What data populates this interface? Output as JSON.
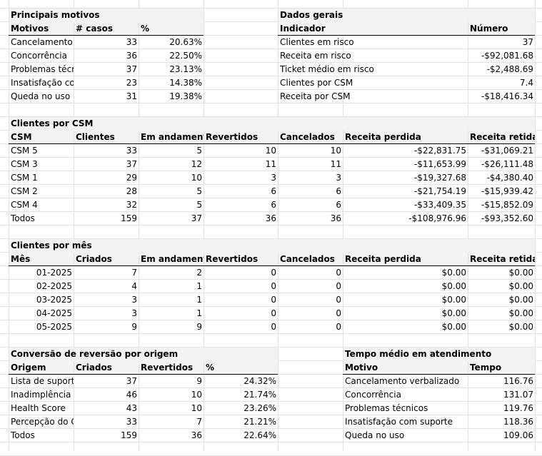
{
  "sections": [
    {
      "id": "principais-motivos",
      "title": "Principais motivos",
      "headers": [
        "Motivos",
        "# casos",
        "%"
      ],
      "rows": [
        [
          "Cancelamento",
          "33",
          "20.63%"
        ],
        [
          "Concorrência",
          "36",
          "22.50%"
        ],
        [
          "Problemas técr",
          "37",
          "23.13%"
        ],
        [
          "Insatisfação co",
          "23",
          "14.38%"
        ],
        [
          "Queda no uso",
          "31",
          "19.38%"
        ]
      ]
    },
    {
      "id": "dados-gerais",
      "title": "Dados gerais",
      "headers": [
        "Indicador",
        "Número"
      ],
      "rows": [
        [
          "Clientes em risco",
          "37"
        ],
        [
          "Receita em risco",
          "-$92,081.68"
        ],
        [
          "Ticket médio em risco",
          "-$2,488.69"
        ],
        [
          "Clientes por CSM",
          "7.4"
        ],
        [
          "Receita por CSM",
          "-$18,416.34"
        ]
      ]
    },
    {
      "id": "clientes-por-csm",
      "title": "Clientes por CSM",
      "headers": [
        "CSM",
        "Clientes",
        "Em andamento",
        "Revertidos",
        "Cancelados",
        "Receita perdida",
        "Receita retida"
      ],
      "rows": [
        [
          "CSM 5",
          "33",
          "5",
          "10",
          "10",
          "-$22,831.75",
          "-$31,069.21"
        ],
        [
          "CSM 3",
          "37",
          "12",
          "11",
          "11",
          "-$11,653.99",
          "-$26,111.48"
        ],
        [
          "CSM 1",
          "29",
          "10",
          "3",
          "3",
          "-$19,327.68",
          "-$4,380.40"
        ],
        [
          "CSM 2",
          "28",
          "5",
          "6",
          "6",
          "-$21,754.19",
          "-$15,939.42"
        ],
        [
          "CSM 4",
          "32",
          "5",
          "6",
          "6",
          "-$33,409.35",
          "-$15,852.09"
        ],
        [
          "Todos",
          "159",
          "37",
          "36",
          "36",
          "-$108,976.96",
          "-$93,352.60"
        ]
      ]
    },
    {
      "id": "clientes-por-mes",
      "title": "Clientes por mês",
      "headers": [
        "Mês",
        "Criados",
        "Em andamento",
        "Revertidos",
        "Cancelados",
        "Receita perdida",
        "Receita retida"
      ],
      "rows": [
        [
          "01-2025",
          "7",
          "2",
          "0",
          "0",
          "$0.00",
          "$0.00"
        ],
        [
          "02-2025",
          "4",
          "1",
          "0",
          "0",
          "$0.00",
          "$0.00"
        ],
        [
          "03-2025",
          "3",
          "1",
          "0",
          "0",
          "$0.00",
          "$0.00"
        ],
        [
          "04-2025",
          "3",
          "1",
          "0",
          "0",
          "$0.00",
          "$0.00"
        ],
        [
          "05-2025",
          "9",
          "9",
          "0",
          "0",
          "$0.00",
          "$0.00"
        ]
      ]
    },
    {
      "id": "conversao-reversao",
      "title": "Conversão de reversão por origem",
      "headers": [
        "Origem",
        "Criados",
        "Revertidos",
        "%"
      ],
      "rows": [
        [
          "Lista de suport",
          "37",
          "9",
          "24.32%"
        ],
        [
          "Inadimplência",
          "46",
          "10",
          "21.74%"
        ],
        [
          "Health Score",
          "43",
          "10",
          "23.26%"
        ],
        [
          "Percepção do C",
          "33",
          "7",
          "21.21%"
        ],
        [
          "Todos",
          "159",
          "36",
          "22.64%"
        ]
      ]
    },
    {
      "id": "tempo-medio",
      "title": "Tempo médio em atendimento",
      "headers": [
        "Motivo",
        "Tempo"
      ],
      "rows": [
        [
          "Cancelamento verbalizado",
          "116.76"
        ],
        [
          "Concorrência",
          "131.07"
        ],
        [
          "Problemas técnicos",
          "119.76"
        ],
        [
          "Insatisfação com suporte",
          "118.36"
        ],
        [
          "Queda no uso",
          "109.06"
        ]
      ]
    }
  ]
}
